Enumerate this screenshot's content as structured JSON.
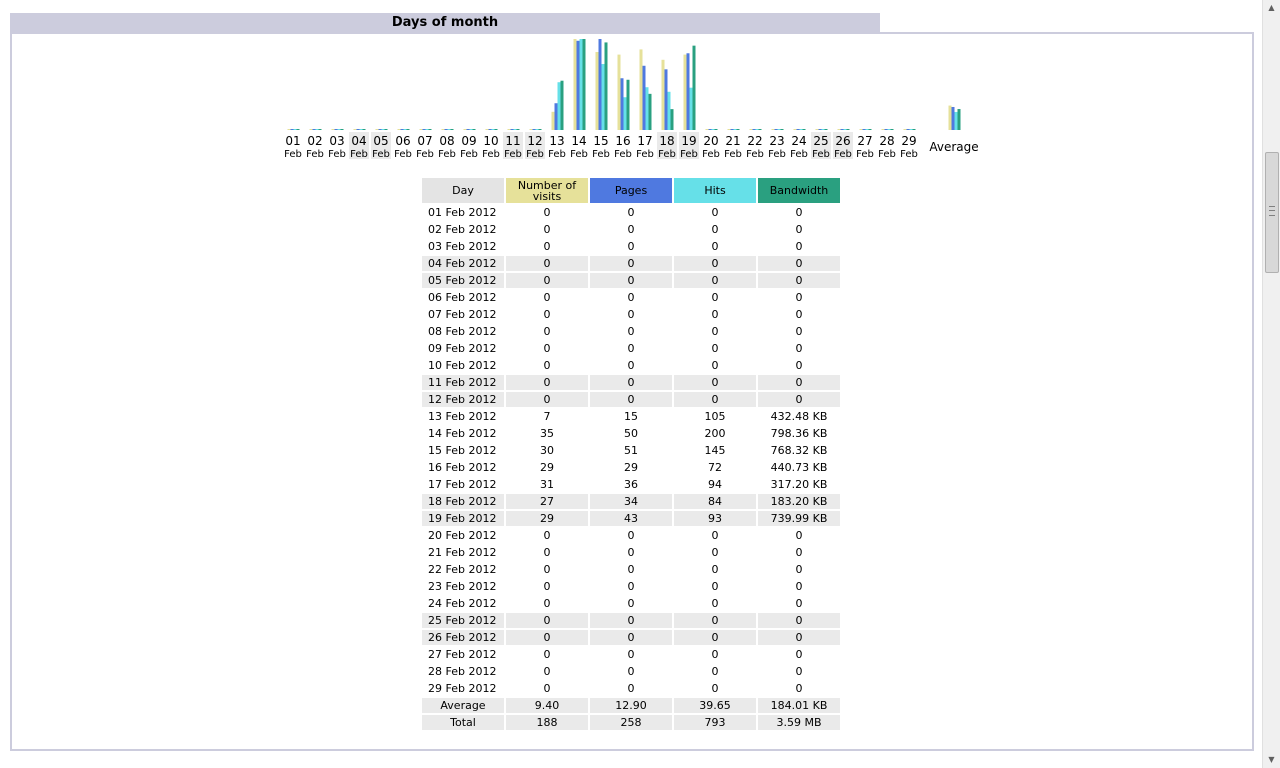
{
  "section": {
    "title": "Days of month"
  },
  "colors": {
    "visits": "#e6e19a",
    "pages": "#4f79e0",
    "hits": "#66e0e8",
    "bandwidth": "#2aa080",
    "title_bg": "#ccccdd",
    "weekend_bg": "#eaeaea"
  },
  "chart_data": {
    "type": "bar",
    "categories": [
      {
        "day": "01",
        "mon": "Feb",
        "weekend": false
      },
      {
        "day": "02",
        "mon": "Feb",
        "weekend": false
      },
      {
        "day": "03",
        "mon": "Feb",
        "weekend": false
      },
      {
        "day": "04",
        "mon": "Feb",
        "weekend": true
      },
      {
        "day": "05",
        "mon": "Feb",
        "weekend": true
      },
      {
        "day": "06",
        "mon": "Feb",
        "weekend": false
      },
      {
        "day": "07",
        "mon": "Feb",
        "weekend": false
      },
      {
        "day": "08",
        "mon": "Feb",
        "weekend": false
      },
      {
        "day": "09",
        "mon": "Feb",
        "weekend": false
      },
      {
        "day": "10",
        "mon": "Feb",
        "weekend": false
      },
      {
        "day": "11",
        "mon": "Feb",
        "weekend": true
      },
      {
        "day": "12",
        "mon": "Feb",
        "weekend": true
      },
      {
        "day": "13",
        "mon": "Feb",
        "weekend": false
      },
      {
        "day": "14",
        "mon": "Feb",
        "weekend": false
      },
      {
        "day": "15",
        "mon": "Feb",
        "weekend": false
      },
      {
        "day": "16",
        "mon": "Feb",
        "weekend": false
      },
      {
        "day": "17",
        "mon": "Feb",
        "weekend": false
      },
      {
        "day": "18",
        "mon": "Feb",
        "weekend": true
      },
      {
        "day": "19",
        "mon": "Feb",
        "weekend": true
      },
      {
        "day": "20",
        "mon": "Feb",
        "weekend": false
      },
      {
        "day": "21",
        "mon": "Feb",
        "weekend": false
      },
      {
        "day": "22",
        "mon": "Feb",
        "weekend": false
      },
      {
        "day": "23",
        "mon": "Feb",
        "weekend": false
      },
      {
        "day": "24",
        "mon": "Feb",
        "weekend": false
      },
      {
        "day": "25",
        "mon": "Feb",
        "weekend": true
      },
      {
        "day": "26",
        "mon": "Feb",
        "weekend": true
      },
      {
        "day": "27",
        "mon": "Feb",
        "weekend": false
      },
      {
        "day": "28",
        "mon": "Feb",
        "weekend": false
      },
      {
        "day": "29",
        "mon": "Feb",
        "weekend": false
      }
    ],
    "average_label": "Average",
    "series": [
      {
        "key": "visits",
        "values": [
          0,
          0,
          0,
          0,
          0,
          0,
          0,
          0,
          0,
          0,
          0,
          0,
          7,
          35,
          30,
          29,
          31,
          27,
          29,
          0,
          0,
          0,
          0,
          0,
          0,
          0,
          0,
          0,
          0
        ],
        "average": 9.4
      },
      {
        "key": "pages",
        "values": [
          0,
          0,
          0,
          0,
          0,
          0,
          0,
          0,
          0,
          0,
          0,
          0,
          15,
          50,
          51,
          29,
          36,
          34,
          43,
          0,
          0,
          0,
          0,
          0,
          0,
          0,
          0,
          0,
          0
        ],
        "average": 12.9
      },
      {
        "key": "hits",
        "values": [
          0,
          0,
          0,
          0,
          0,
          0,
          0,
          0,
          0,
          0,
          0,
          0,
          105,
          200,
          145,
          72,
          94,
          84,
          93,
          0,
          0,
          0,
          0,
          0,
          0,
          0,
          0,
          0,
          0
        ],
        "average": 39.65
      },
      {
        "key": "bandwidth",
        "values": [
          0,
          0,
          0,
          0,
          0,
          0,
          0,
          0,
          0,
          0,
          0,
          0,
          432.48,
          798.36,
          768.32,
          440.73,
          317.2,
          183.2,
          739.99,
          0,
          0,
          0,
          0,
          0,
          0,
          0,
          0,
          0,
          0
        ],
        "average": 184.01
      }
    ]
  },
  "table": {
    "headers": {
      "day": "Day",
      "visits": "Number of visits",
      "pages": "Pages",
      "hits": "Hits",
      "bandwidth": "Bandwidth"
    },
    "rows": [
      {
        "day": "01 Feb 2012",
        "visits": "0",
        "pages": "0",
        "hits": "0",
        "bandwidth": "0",
        "weekend": false
      },
      {
        "day": "02 Feb 2012",
        "visits": "0",
        "pages": "0",
        "hits": "0",
        "bandwidth": "0",
        "weekend": false
      },
      {
        "day": "03 Feb 2012",
        "visits": "0",
        "pages": "0",
        "hits": "0",
        "bandwidth": "0",
        "weekend": false
      },
      {
        "day": "04 Feb 2012",
        "visits": "0",
        "pages": "0",
        "hits": "0",
        "bandwidth": "0",
        "weekend": true
      },
      {
        "day": "05 Feb 2012",
        "visits": "0",
        "pages": "0",
        "hits": "0",
        "bandwidth": "0",
        "weekend": true
      },
      {
        "day": "06 Feb 2012",
        "visits": "0",
        "pages": "0",
        "hits": "0",
        "bandwidth": "0",
        "weekend": false
      },
      {
        "day": "07 Feb 2012",
        "visits": "0",
        "pages": "0",
        "hits": "0",
        "bandwidth": "0",
        "weekend": false
      },
      {
        "day": "08 Feb 2012",
        "visits": "0",
        "pages": "0",
        "hits": "0",
        "bandwidth": "0",
        "weekend": false
      },
      {
        "day": "09 Feb 2012",
        "visits": "0",
        "pages": "0",
        "hits": "0",
        "bandwidth": "0",
        "weekend": false
      },
      {
        "day": "10 Feb 2012",
        "visits": "0",
        "pages": "0",
        "hits": "0",
        "bandwidth": "0",
        "weekend": false
      },
      {
        "day": "11 Feb 2012",
        "visits": "0",
        "pages": "0",
        "hits": "0",
        "bandwidth": "0",
        "weekend": true
      },
      {
        "day": "12 Feb 2012",
        "visits": "0",
        "pages": "0",
        "hits": "0",
        "bandwidth": "0",
        "weekend": true
      },
      {
        "day": "13 Feb 2012",
        "visits": "7",
        "pages": "15",
        "hits": "105",
        "bandwidth": "432.48 KB",
        "weekend": false
      },
      {
        "day": "14 Feb 2012",
        "visits": "35",
        "pages": "50",
        "hits": "200",
        "bandwidth": "798.36 KB",
        "weekend": false
      },
      {
        "day": "15 Feb 2012",
        "visits": "30",
        "pages": "51",
        "hits": "145",
        "bandwidth": "768.32 KB",
        "weekend": false
      },
      {
        "day": "16 Feb 2012",
        "visits": "29",
        "pages": "29",
        "hits": "72",
        "bandwidth": "440.73 KB",
        "weekend": false
      },
      {
        "day": "17 Feb 2012",
        "visits": "31",
        "pages": "36",
        "hits": "94",
        "bandwidth": "317.20 KB",
        "weekend": false
      },
      {
        "day": "18 Feb 2012",
        "visits": "27",
        "pages": "34",
        "hits": "84",
        "bandwidth": "183.20 KB",
        "weekend": true
      },
      {
        "day": "19 Feb 2012",
        "visits": "29",
        "pages": "43",
        "hits": "93",
        "bandwidth": "739.99 KB",
        "weekend": true
      },
      {
        "day": "20 Feb 2012",
        "visits": "0",
        "pages": "0",
        "hits": "0",
        "bandwidth": "0",
        "weekend": false
      },
      {
        "day": "21 Feb 2012",
        "visits": "0",
        "pages": "0",
        "hits": "0",
        "bandwidth": "0",
        "weekend": false
      },
      {
        "day": "22 Feb 2012",
        "visits": "0",
        "pages": "0",
        "hits": "0",
        "bandwidth": "0",
        "weekend": false
      },
      {
        "day": "23 Feb 2012",
        "visits": "0",
        "pages": "0",
        "hits": "0",
        "bandwidth": "0",
        "weekend": false
      },
      {
        "day": "24 Feb 2012",
        "visits": "0",
        "pages": "0",
        "hits": "0",
        "bandwidth": "0",
        "weekend": false
      },
      {
        "day": "25 Feb 2012",
        "visits": "0",
        "pages": "0",
        "hits": "0",
        "bandwidth": "0",
        "weekend": true
      },
      {
        "day": "26 Feb 2012",
        "visits": "0",
        "pages": "0",
        "hits": "0",
        "bandwidth": "0",
        "weekend": true
      },
      {
        "day": "27 Feb 2012",
        "visits": "0",
        "pages": "0",
        "hits": "0",
        "bandwidth": "0",
        "weekend": false
      },
      {
        "day": "28 Feb 2012",
        "visits": "0",
        "pages": "0",
        "hits": "0",
        "bandwidth": "0",
        "weekend": false
      },
      {
        "day": "29 Feb 2012",
        "visits": "0",
        "pages": "0",
        "hits": "0",
        "bandwidth": "0",
        "weekend": false
      }
    ],
    "average": {
      "day": "Average",
      "visits": "9.40",
      "pages": "12.90",
      "hits": "39.65",
      "bandwidth": "184.01 KB"
    },
    "total": {
      "day": "Total",
      "visits": "188",
      "pages": "258",
      "hits": "793",
      "bandwidth": "3.59 MB"
    }
  },
  "scrollbar": {
    "up_icon": "▲",
    "down_icon": "▼"
  }
}
